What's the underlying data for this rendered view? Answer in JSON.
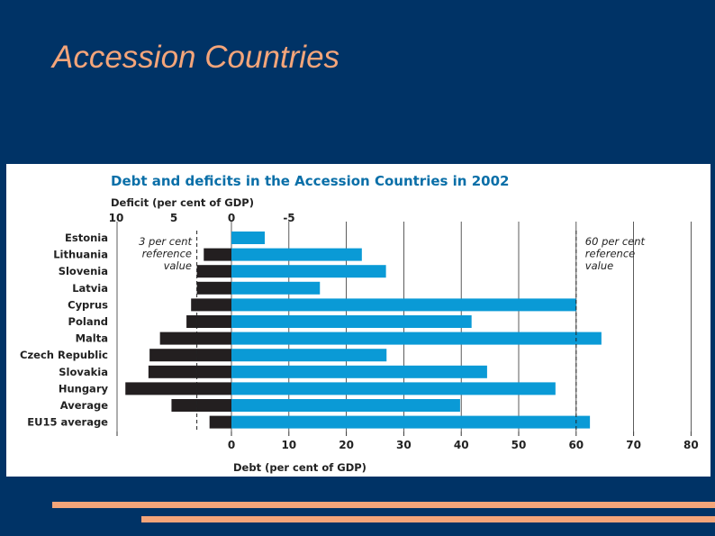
{
  "slide": {
    "title": "Accession Countries",
    "colors": {
      "background": "#003366",
      "accent": "#F4A57A"
    }
  },
  "chart_data": {
    "type": "bar",
    "title": "Debt and deficits in the Accession Countries in 2002",
    "categories": [
      "Estonia",
      "Lithuania",
      "Slovenia",
      "Latvia",
      "Cyprus",
      "Poland",
      "Malta",
      "Czech Republic",
      "Slovakia",
      "Hungary",
      "Average",
      "EU15 average"
    ],
    "series": [
      {
        "name": "Deficit (per cent of GDP)",
        "color": "#231F20",
        "values": [
          -1.2,
          2.4,
          3.0,
          3.0,
          3.5,
          3.9,
          6.2,
          7.1,
          7.2,
          9.2,
          5.2,
          1.9
        ]
      },
      {
        "name": "Debt (per cent of GDP)",
        "color": "#0A9AD6",
        "values": [
          5.8,
          22.7,
          26.9,
          15.4,
          60.0,
          41.8,
          64.4,
          27.0,
          44.5,
          56.4,
          39.8,
          62.4
        ]
      }
    ],
    "top_axis": {
      "label": "Deficit (per cent of GDP)",
      "ticks": [
        "10",
        "5",
        "0",
        "-5"
      ],
      "range": [
        10,
        -5
      ]
    },
    "bottom_axis": {
      "label": "Debt (per cent of GDP)",
      "ticks": [
        "0",
        "10",
        "20",
        "30",
        "40",
        "50",
        "60",
        "70",
        "80"
      ],
      "range": [
        0,
        80
      ]
    },
    "reference_lines": [
      {
        "axis": "deficit",
        "value": 3,
        "label_lines": [
          "3 per cent",
          "reference",
          "value"
        ]
      },
      {
        "axis": "debt",
        "value": 60,
        "label_lines": [
          "60 per cent",
          "reference",
          "value"
        ]
      }
    ],
    "grid": true,
    "legend": "none"
  }
}
